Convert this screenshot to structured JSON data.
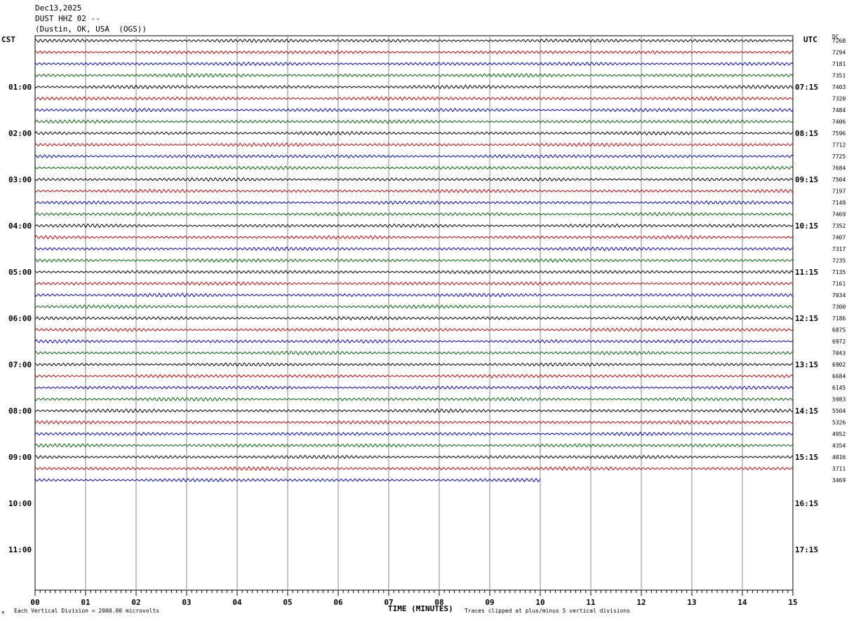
{
  "header": {
    "date": "Dec13,2025",
    "station": "DUST HHZ 02 --",
    "location": "(Dustin, OK, USA  (OGS))"
  },
  "labels": {
    "left_tz": "CST",
    "right_tz": "UTC",
    "dc_label": "DC",
    "x_axis_title": "TIME (MINUTES)",
    "scale_note": "Each Vertical Division = 2000.00 microvolts",
    "clip_note": "Traces clipped at plus/minus 5 vertical divisions",
    "corner_mark": "✕"
  },
  "chart_data": {
    "type": "line",
    "title": "",
    "xlabel": "TIME (MINUTES)",
    "ylabel": "",
    "xlim": [
      0,
      15
    ],
    "x_ticks": [
      "00",
      "01",
      "02",
      "03",
      "04",
      "05",
      "06",
      "07",
      "08",
      "09",
      "10",
      "11",
      "12",
      "13",
      "14",
      "15"
    ],
    "grid": true,
    "rows_per_hour": 4,
    "minutes_per_row": 15,
    "trace_colors": [
      "#000000",
      "#cc0000",
      "#0000cc",
      "#006600"
    ],
    "left_hour_labels": [
      "01:00",
      "02:00",
      "03:00",
      "04:00",
      "05:00",
      "06:00",
      "07:00",
      "08:00",
      "09:00",
      "10:00",
      "11:00"
    ],
    "right_hour_labels": [
      "07:15",
      "08:15",
      "09:15",
      "10:15",
      "11:15",
      "12:15",
      "13:15",
      "14:15",
      "15:15",
      "16:15",
      "17:15"
    ],
    "dc_offsets": [
      7268,
      7294,
      7181,
      7351,
      7403,
      7320,
      7484,
      7406,
      7596,
      7712,
      7725,
      7684,
      7504,
      7197,
      7149,
      7469,
      7352,
      7407,
      7317,
      7235,
      7135,
      7161,
      7034,
      7300,
      7186,
      6875,
      6972,
      7043,
      6902,
      6684,
      6145,
      5983,
      5504,
      5326,
      4952,
      4354,
      4016,
      3711,
      3469
    ],
    "last_row_end_minute": 10,
    "total_rows": 48
  }
}
